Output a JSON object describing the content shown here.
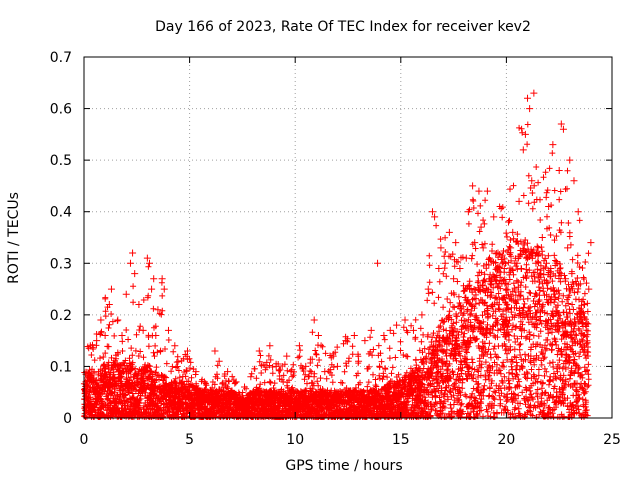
{
  "chart_data": {
    "type": "scatter",
    "title": "Day 166 of 2023, Rate Of TEC Index for receiver kev2",
    "xlabel": "GPS time / hours",
    "ylabel": "ROTI / TECUs",
    "xlim": [
      0,
      25
    ],
    "ylim": [
      0,
      0.7
    ],
    "xticks": [
      "0",
      "5",
      "10",
      "15",
      "20",
      "25"
    ],
    "yticks": [
      "0",
      "0.1",
      "0.2",
      "0.3",
      "0.4",
      "0.5",
      "0.6",
      "0.7"
    ],
    "grid": true,
    "marker": "+",
    "series": [
      {
        "name": "ROTI",
        "color": "#ff0000",
        "envelope_hours": [
          0,
          0.5,
          1,
          1.5,
          2,
          2.3,
          2.5,
          3,
          3.3,
          3.7,
          4,
          4.5,
          5,
          5.5,
          6,
          6.5,
          7,
          7.5,
          8,
          8.5,
          9,
          9.5,
          10,
          10.5,
          11,
          11.5,
          12,
          12.5,
          13,
          13.5,
          14,
          14.5,
          15,
          15.5,
          16,
          16.5,
          17,
          17.5,
          18,
          18.5,
          19,
          19.5,
          20,
          20.5,
          21,
          21.5,
          22,
          22.5,
          23,
          23.5,
          24
        ],
        "envelope_max_roti": [
          0.14,
          0.15,
          0.25,
          0.2,
          0.18,
          0.32,
          0.15,
          0.31,
          0.22,
          0.28,
          0.16,
          0.12,
          0.13,
          0.08,
          0.06,
          0.13,
          0.09,
          0.06,
          0.1,
          0.14,
          0.12,
          0.11,
          0.14,
          0.13,
          0.19,
          0.12,
          0.15,
          0.16,
          0.15,
          0.16,
          0.14,
          0.18,
          0.17,
          0.2,
          0.18,
          0.4,
          0.38,
          0.32,
          0.38,
          0.45,
          0.44,
          0.42,
          0.5,
          0.63,
          0.6,
          0.5,
          0.53,
          0.57,
          0.47,
          0.38,
          0.34
        ],
        "envelope_typical_roti": [
          0.05,
          0.05,
          0.06,
          0.06,
          0.06,
          0.06,
          0.05,
          0.06,
          0.05,
          0.05,
          0.04,
          0.04,
          0.04,
          0.03,
          0.03,
          0.03,
          0.03,
          0.02,
          0.03,
          0.03,
          0.03,
          0.03,
          0.03,
          0.03,
          0.03,
          0.03,
          0.03,
          0.03,
          0.03,
          0.03,
          0.03,
          0.04,
          0.04,
          0.05,
          0.06,
          0.09,
          0.11,
          0.12,
          0.14,
          0.15,
          0.17,
          0.18,
          0.18,
          0.2,
          0.19,
          0.19,
          0.18,
          0.17,
          0.15,
          0.14,
          0.12
        ],
        "points": [
          [
            13.9,
            0.3
          ],
          [
            21.3,
            0.63
          ],
          [
            21.0,
            0.62
          ],
          [
            21.1,
            0.6
          ],
          [
            22.6,
            0.57
          ],
          [
            22.7,
            0.56
          ],
          [
            20.9,
            0.55
          ],
          [
            20.8,
            0.52
          ],
          [
            22.2,
            0.53
          ],
          [
            23.0,
            0.5
          ],
          [
            22.5,
            0.48
          ],
          [
            18.4,
            0.45
          ],
          [
            18.7,
            0.44
          ],
          [
            19.1,
            0.44
          ],
          [
            21.2,
            0.46
          ],
          [
            23.2,
            0.46
          ],
          [
            16.5,
            0.4
          ],
          [
            16.6,
            0.39
          ],
          [
            17.3,
            0.36
          ],
          [
            18.2,
            0.4
          ],
          [
            19.4,
            0.39
          ],
          [
            20.1,
            0.38
          ],
          [
            20.6,
            0.42
          ],
          [
            22.0,
            0.41
          ],
          [
            23.4,
            0.4
          ],
          [
            16.9,
            0.33
          ],
          [
            17.6,
            0.34
          ],
          [
            18.9,
            0.33
          ],
          [
            20.3,
            0.36
          ],
          [
            21.7,
            0.35
          ],
          [
            22.9,
            0.33
          ],
          [
            24.0,
            0.34
          ],
          [
            2.3,
            0.32
          ],
          [
            2.2,
            0.3
          ],
          [
            2.4,
            0.28
          ],
          [
            3.0,
            0.31
          ],
          [
            3.1,
            0.3
          ],
          [
            3.3,
            0.27
          ],
          [
            3.7,
            0.27
          ],
          [
            3.8,
            0.25
          ],
          [
            3.2,
            0.25
          ],
          [
            1.3,
            0.25
          ],
          [
            1.2,
            0.22
          ],
          [
            2.0,
            0.24
          ],
          [
            2.6,
            0.22
          ],
          [
            3.5,
            0.21
          ],
          [
            0.8,
            0.19
          ],
          [
            1.6,
            0.19
          ],
          [
            4.0,
            0.17
          ],
          [
            0.3,
            0.14
          ],
          [
            0.6,
            0.15
          ],
          [
            1.0,
            0.16
          ],
          [
            1.8,
            0.16
          ],
          [
            2.8,
            0.17
          ],
          [
            3.4,
            0.16
          ],
          [
            4.3,
            0.14
          ],
          [
            4.9,
            0.13
          ],
          [
            6.2,
            0.13
          ],
          [
            6.4,
            0.11
          ],
          [
            8.3,
            0.13
          ],
          [
            8.8,
            0.14
          ],
          [
            9.6,
            0.12
          ],
          [
            10.2,
            0.14
          ],
          [
            10.9,
            0.19
          ],
          [
            11.1,
            0.16
          ],
          [
            11.8,
            0.12
          ],
          [
            12.4,
            0.15
          ],
          [
            12.8,
            0.16
          ],
          [
            13.3,
            0.15
          ],
          [
            13.6,
            0.17
          ],
          [
            14.2,
            0.16
          ],
          [
            14.5,
            0.17
          ],
          [
            14.8,
            0.18
          ],
          [
            15.2,
            0.19
          ],
          [
            15.6,
            0.17
          ],
          [
            16.0,
            0.2
          ],
          [
            16.3,
            0.25
          ],
          [
            16.8,
            0.29
          ],
          [
            17.1,
            0.3
          ],
          [
            17.5,
            0.27
          ],
          [
            17.8,
            0.29
          ],
          [
            18.1,
            0.31
          ],
          [
            18.5,
            0.34
          ],
          [
            18.8,
            0.37
          ],
          [
            19.2,
            0.31
          ],
          [
            19.6,
            0.32
          ],
          [
            19.9,
            0.29
          ],
          [
            20.2,
            0.33
          ],
          [
            20.5,
            0.3
          ],
          [
            20.7,
            0.29
          ],
          [
            21.0,
            0.31
          ],
          [
            21.4,
            0.3
          ],
          [
            21.6,
            0.28
          ],
          [
            21.9,
            0.3
          ],
          [
            22.1,
            0.29
          ],
          [
            22.4,
            0.3
          ],
          [
            22.8,
            0.27
          ],
          [
            23.1,
            0.28
          ],
          [
            23.5,
            0.26
          ],
          [
            23.7,
            0.22
          ],
          [
            23.9,
            0.25
          ],
          [
            5.3,
            0.09
          ],
          [
            5.7,
            0.07
          ],
          [
            6.8,
            0.09
          ],
          [
            7.2,
            0.07
          ],
          [
            7.6,
            0.06
          ],
          [
            7.9,
            0.08
          ],
          [
            9.1,
            0.1
          ],
          [
            9.8,
            0.09
          ],
          [
            10.5,
            0.1
          ],
          [
            11.4,
            0.09
          ],
          [
            12.0,
            0.1
          ],
          [
            13.0,
            0.11
          ]
        ]
      }
    ]
  }
}
